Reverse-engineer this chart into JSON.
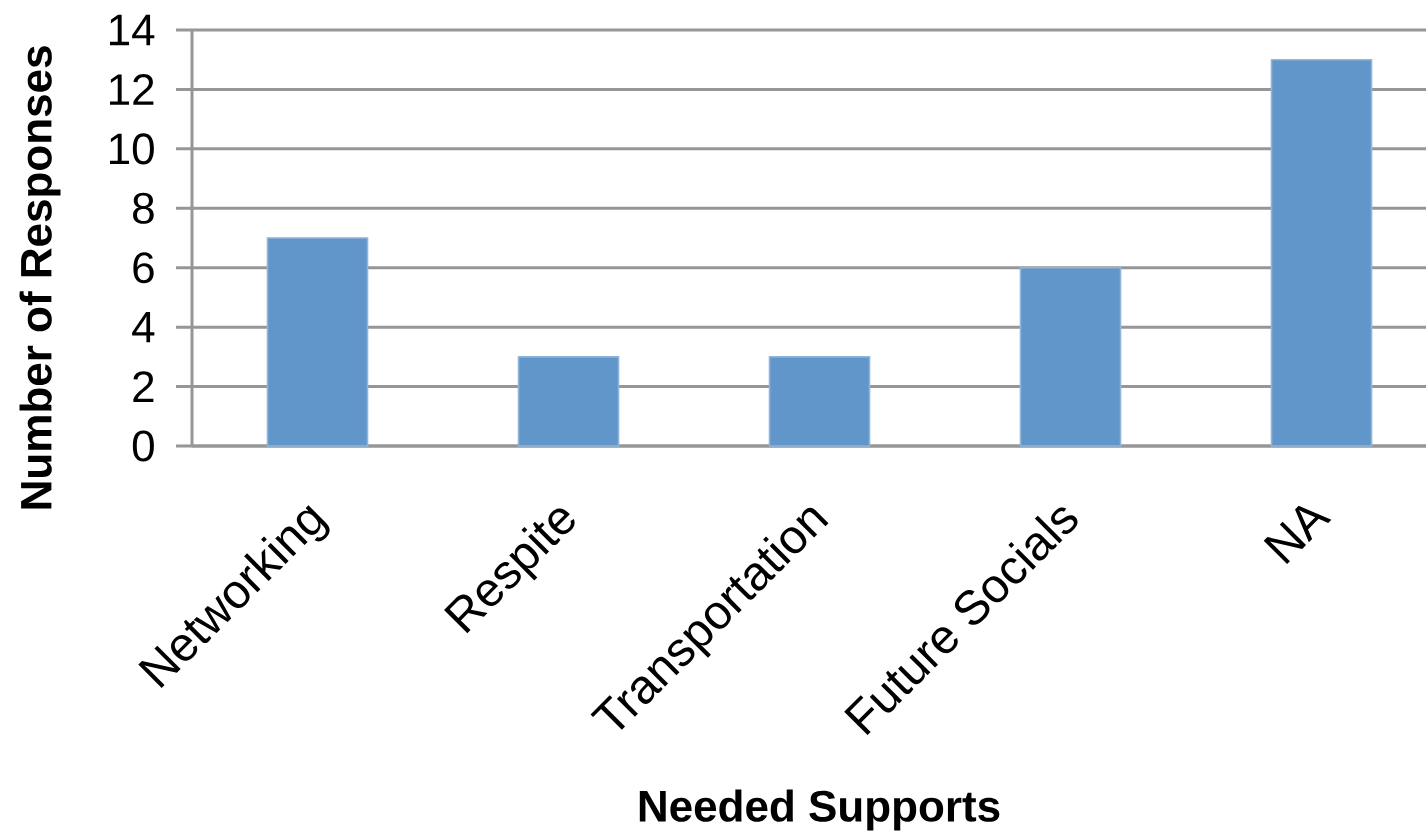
{
  "chart_data": {
    "type": "bar",
    "xlabel": "Needed Supports",
    "ylabel": "Number of Responses",
    "categories": [
      "Networking",
      "Respite",
      "Transportation",
      "Future Socials",
      "NA"
    ],
    "values": [
      7,
      3,
      3,
      6,
      13
    ],
    "color": "#6096c9",
    "ylim": [
      0,
      14
    ],
    "yticks": [
      0,
      2,
      4,
      6,
      8,
      10,
      12,
      14
    ],
    "grid": "y"
  }
}
